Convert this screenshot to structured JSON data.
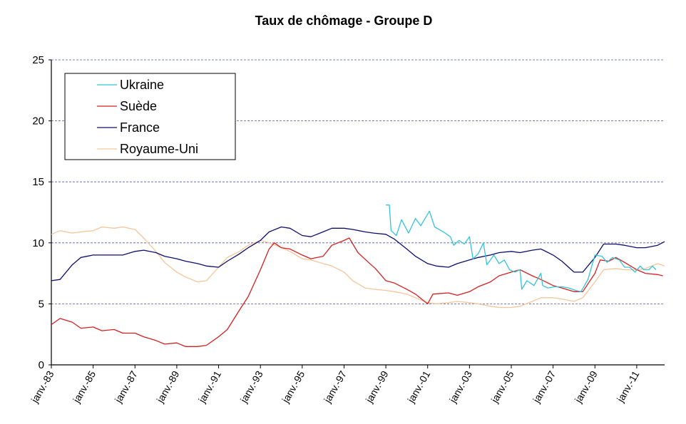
{
  "chart_data": {
    "type": "line",
    "title": "Taux de chômage - Groupe D",
    "xlabel": "",
    "ylabel": "",
    "ylim": [
      0,
      25
    ],
    "yticks": [
      0,
      5,
      10,
      15,
      20,
      25
    ],
    "x_tick_labels": [
      "janv.-83",
      "janv.-85",
      "janv.-87",
      "janv.-89",
      "janv.-91",
      "janv.-93",
      "janv.-95",
      "janv.-97",
      "janv.-99",
      "janv.-01",
      "janv.-03",
      "janv.-05",
      "janv.-07",
      "janv.-09",
      "janv.-11"
    ],
    "x_range": [
      "1983-01",
      "2012-05"
    ],
    "grid": "horizontal-dashed",
    "legend_position": "top-left",
    "series": [
      {
        "name": "Ukraine",
        "color": "#33c4d8",
        "points": [
          [
            "1999-01",
            13.1
          ],
          [
            "1999-03",
            13.1
          ],
          [
            "1999-04",
            11.0
          ],
          [
            "1999-07",
            10.6
          ],
          [
            "1999-10",
            11.9
          ],
          [
            "2000-02",
            10.8
          ],
          [
            "2000-06",
            12.0
          ],
          [
            "2000-09",
            11.4
          ],
          [
            "2001-02",
            12.6
          ],
          [
            "2001-05",
            11.3
          ],
          [
            "2001-10",
            10.9
          ],
          [
            "2002-02",
            10.5
          ],
          [
            "2002-04",
            9.8
          ],
          [
            "2002-07",
            10.2
          ],
          [
            "2002-10",
            9.9
          ],
          [
            "2003-01",
            10.5
          ],
          [
            "2003-03",
            8.7
          ],
          [
            "2003-06",
            9.1
          ],
          [
            "2003-09",
            10.0
          ],
          [
            "2003-11",
            8.2
          ],
          [
            "2004-03",
            9.0
          ],
          [
            "2004-06",
            8.3
          ],
          [
            "2004-09",
            8.6
          ],
          [
            "2004-12",
            7.8
          ],
          [
            "2005-03",
            7.6
          ],
          [
            "2005-06",
            7.8
          ],
          [
            "2005-07",
            6.2
          ],
          [
            "2005-10",
            6.9
          ],
          [
            "2006-02",
            6.5
          ],
          [
            "2006-06",
            7.5
          ],
          [
            "2006-07",
            6.5
          ],
          [
            "2006-10",
            6.3
          ],
          [
            "2007-02",
            6.4
          ],
          [
            "2007-06",
            6.4
          ],
          [
            "2007-10",
            6.3
          ],
          [
            "2008-02",
            6.1
          ],
          [
            "2008-05",
            6.0
          ],
          [
            "2008-09",
            7.0
          ],
          [
            "2009-01",
            9.0
          ],
          [
            "2009-05",
            8.9
          ],
          [
            "2009-08",
            8.4
          ],
          [
            "2009-11",
            8.8
          ],
          [
            "2010-03",
            8.6
          ],
          [
            "2010-06",
            8.0
          ],
          [
            "2010-09",
            8.0
          ],
          [
            "2010-12",
            7.6
          ],
          [
            "2011-03",
            8.1
          ],
          [
            "2011-05",
            7.8
          ],
          [
            "2011-08",
            7.8
          ],
          [
            "2011-10",
            8.1
          ],
          [
            "2011-12",
            7.8
          ]
        ]
      },
      {
        "name": "Suède",
        "color": "#d42020",
        "points": [
          [
            "1983-01",
            3.3
          ],
          [
            "1983-06",
            3.8
          ],
          [
            "1984-01",
            3.5
          ],
          [
            "1984-06",
            3.0
          ],
          [
            "1985-01",
            3.1
          ],
          [
            "1985-06",
            2.8
          ],
          [
            "1986-01",
            2.9
          ],
          [
            "1986-06",
            2.6
          ],
          [
            "1987-01",
            2.6
          ],
          [
            "1987-06",
            2.3
          ],
          [
            "1988-01",
            2.0
          ],
          [
            "1988-06",
            1.7
          ],
          [
            "1989-01",
            1.8
          ],
          [
            "1989-06",
            1.5
          ],
          [
            "1990-01",
            1.5
          ],
          [
            "1990-06",
            1.6
          ],
          [
            "1991-01",
            2.3
          ],
          [
            "1991-06",
            2.9
          ],
          [
            "1992-01",
            4.5
          ],
          [
            "1992-06",
            5.6
          ],
          [
            "1993-01",
            7.8
          ],
          [
            "1993-06",
            9.5
          ],
          [
            "1993-09",
            10.0
          ],
          [
            "1994-01",
            9.6
          ],
          [
            "1994-06",
            9.5
          ],
          [
            "1995-01",
            9.0
          ],
          [
            "1995-06",
            8.7
          ],
          [
            "1996-01",
            8.9
          ],
          [
            "1996-06",
            9.8
          ],
          [
            "1997-01",
            10.2
          ],
          [
            "1997-04",
            10.4
          ],
          [
            "1997-09",
            9.2
          ],
          [
            "1998-03",
            8.4
          ],
          [
            "1998-07",
            7.9
          ],
          [
            "1999-01",
            6.9
          ],
          [
            "1999-06",
            6.7
          ],
          [
            "2000-01",
            6.2
          ],
          [
            "2000-06",
            5.8
          ],
          [
            "2001-01",
            5.0
          ],
          [
            "2001-04",
            5.8
          ],
          [
            "2002-01",
            5.9
          ],
          [
            "2002-06",
            5.7
          ],
          [
            "2003-01",
            6.0
          ],
          [
            "2003-06",
            6.4
          ],
          [
            "2004-01",
            6.8
          ],
          [
            "2004-06",
            7.3
          ],
          [
            "2005-01",
            7.6
          ],
          [
            "2005-06",
            7.8
          ],
          [
            "2006-01",
            7.3
          ],
          [
            "2006-06",
            7.0
          ],
          [
            "2007-01",
            6.5
          ],
          [
            "2007-06",
            6.3
          ],
          [
            "2008-01",
            6.0
          ],
          [
            "2008-06",
            6.0
          ],
          [
            "2009-01",
            7.5
          ],
          [
            "2009-04",
            8.6
          ],
          [
            "2009-09",
            8.5
          ],
          [
            "2010-01",
            8.8
          ],
          [
            "2010-06",
            8.4
          ],
          [
            "2011-01",
            7.8
          ],
          [
            "2011-06",
            7.5
          ],
          [
            "2012-01",
            7.4
          ],
          [
            "2012-04",
            7.3
          ]
        ]
      },
      {
        "name": "France",
        "color": "#0d0d6e",
        "points": [
          [
            "1983-01",
            6.9
          ],
          [
            "1983-06",
            7.0
          ],
          [
            "1984-01",
            8.2
          ],
          [
            "1984-06",
            8.8
          ],
          [
            "1985-01",
            9.0
          ],
          [
            "1985-06",
            9.0
          ],
          [
            "1986-01",
            9.0
          ],
          [
            "1986-06",
            9.0
          ],
          [
            "1987-01",
            9.3
          ],
          [
            "1987-06",
            9.4
          ],
          [
            "1988-01",
            9.2
          ],
          [
            "1988-06",
            8.9
          ],
          [
            "1989-01",
            8.7
          ],
          [
            "1989-06",
            8.5
          ],
          [
            "1990-01",
            8.3
          ],
          [
            "1990-06",
            8.1
          ],
          [
            "1991-01",
            8.0
          ],
          [
            "1991-06",
            8.5
          ],
          [
            "1992-01",
            9.1
          ],
          [
            "1992-06",
            9.6
          ],
          [
            "1993-01",
            10.2
          ],
          [
            "1993-06",
            10.9
          ],
          [
            "1994-01",
            11.3
          ],
          [
            "1994-06",
            11.2
          ],
          [
            "1995-01",
            10.6
          ],
          [
            "1995-06",
            10.5
          ],
          [
            "1996-01",
            10.9
          ],
          [
            "1996-06",
            11.2
          ],
          [
            "1997-01",
            11.2
          ],
          [
            "1997-06",
            11.1
          ],
          [
            "1998-01",
            10.9
          ],
          [
            "1998-06",
            10.8
          ],
          [
            "1999-01",
            10.7
          ],
          [
            "1999-06",
            10.3
          ],
          [
            "2000-01",
            9.5
          ],
          [
            "2000-06",
            8.9
          ],
          [
            "2001-01",
            8.3
          ],
          [
            "2001-06",
            8.1
          ],
          [
            "2002-01",
            8.0
          ],
          [
            "2002-06",
            8.3
          ],
          [
            "2003-01",
            8.6
          ],
          [
            "2003-06",
            8.8
          ],
          [
            "2004-01",
            9.0
          ],
          [
            "2004-06",
            9.2
          ],
          [
            "2005-01",
            9.3
          ],
          [
            "2005-06",
            9.2
          ],
          [
            "2006-01",
            9.4
          ],
          [
            "2006-06",
            9.5
          ],
          [
            "2007-01",
            9.0
          ],
          [
            "2007-06",
            8.5
          ],
          [
            "2008-01",
            7.6
          ],
          [
            "2008-06",
            7.6
          ],
          [
            "2009-01",
            8.8
          ],
          [
            "2009-06",
            9.9
          ],
          [
            "2010-01",
            9.9
          ],
          [
            "2010-06",
            9.8
          ],
          [
            "2011-01",
            9.6
          ],
          [
            "2011-06",
            9.6
          ],
          [
            "2012-01",
            9.8
          ],
          [
            "2012-05",
            10.1
          ]
        ]
      },
      {
        "name": "Royaume-Uni",
        "color": "#f5c598",
        "points": [
          [
            "1983-01",
            10.7
          ],
          [
            "1983-06",
            11.0
          ],
          [
            "1984-01",
            10.8
          ],
          [
            "1984-06",
            10.9
          ],
          [
            "1985-01",
            11.0
          ],
          [
            "1985-06",
            11.3
          ],
          [
            "1986-01",
            11.2
          ],
          [
            "1986-06",
            11.3
          ],
          [
            "1987-01",
            11.1
          ],
          [
            "1987-06",
            10.4
          ],
          [
            "1988-01",
            9.3
          ],
          [
            "1988-06",
            8.4
          ],
          [
            "1989-01",
            7.6
          ],
          [
            "1989-06",
            7.2
          ],
          [
            "1990-01",
            6.8
          ],
          [
            "1990-06",
            6.9
          ],
          [
            "1991-01",
            8.0
          ],
          [
            "1991-06",
            8.8
          ],
          [
            "1992-01",
            9.3
          ],
          [
            "1992-06",
            9.8
          ],
          [
            "1993-01",
            10.2
          ],
          [
            "1993-06",
            10.0
          ],
          [
            "1994-01",
            9.6
          ],
          [
            "1994-06",
            9.3
          ],
          [
            "1995-01",
            8.7
          ],
          [
            "1995-06",
            8.6
          ],
          [
            "1996-01",
            8.3
          ],
          [
            "1996-06",
            8.1
          ],
          [
            "1997-01",
            7.6
          ],
          [
            "1997-06",
            6.9
          ],
          [
            "1998-01",
            6.3
          ],
          [
            "1998-06",
            6.2
          ],
          [
            "1999-01",
            6.1
          ],
          [
            "1999-06",
            6.0
          ],
          [
            "2000-01",
            5.8
          ],
          [
            "2000-06",
            5.5
          ],
          [
            "2001-01",
            5.1
          ],
          [
            "2001-06",
            5.0
          ],
          [
            "2002-01",
            5.1
          ],
          [
            "2002-06",
            5.2
          ],
          [
            "2003-01",
            5.1
          ],
          [
            "2003-06",
            5.0
          ],
          [
            "2004-01",
            4.8
          ],
          [
            "2004-06",
            4.7
          ],
          [
            "2005-01",
            4.7
          ],
          [
            "2005-06",
            4.8
          ],
          [
            "2006-01",
            5.2
          ],
          [
            "2006-06",
            5.5
          ],
          [
            "2007-01",
            5.5
          ],
          [
            "2007-06",
            5.4
          ],
          [
            "2008-01",
            5.2
          ],
          [
            "2008-06",
            5.5
          ],
          [
            "2009-01",
            6.8
          ],
          [
            "2009-06",
            7.8
          ],
          [
            "2010-01",
            7.9
          ],
          [
            "2010-06",
            7.8
          ],
          [
            "2011-01",
            7.8
          ],
          [
            "2011-06",
            7.9
          ],
          [
            "2012-01",
            8.3
          ],
          [
            "2012-05",
            8.1
          ]
        ]
      }
    ]
  }
}
